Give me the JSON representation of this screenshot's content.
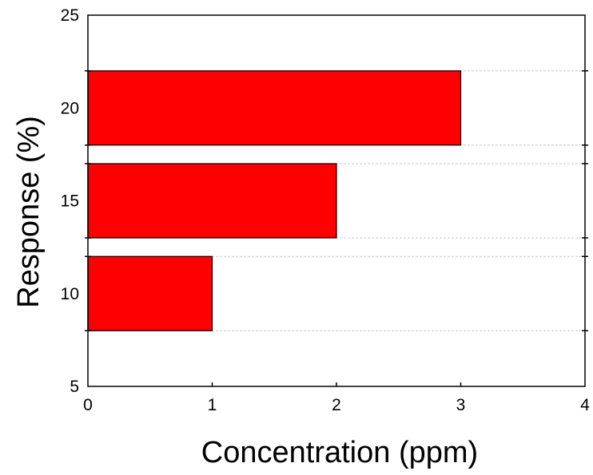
{
  "chart_data": {
    "type": "bar",
    "orientation": "horizontal",
    "title": "",
    "xlabel": "Concentration (ppm)",
    "ylabel": "Response (%)",
    "xlim": [
      0,
      4
    ],
    "ylim": [
      5,
      25
    ],
    "x_ticks": [
      "0",
      "1",
      "2",
      "3",
      "4"
    ],
    "y_ticks": [
      "5",
      "10",
      "15",
      "20",
      "25"
    ],
    "categories": [
      "10",
      "15",
      "20"
    ],
    "bars": [
      {
        "y": 10,
        "value": 1
      },
      {
        "y": 15,
        "value": 2
      },
      {
        "y": 20,
        "value": 3
      }
    ],
    "grid": true,
    "bar_color": "#ff0000",
    "legend": "none"
  }
}
